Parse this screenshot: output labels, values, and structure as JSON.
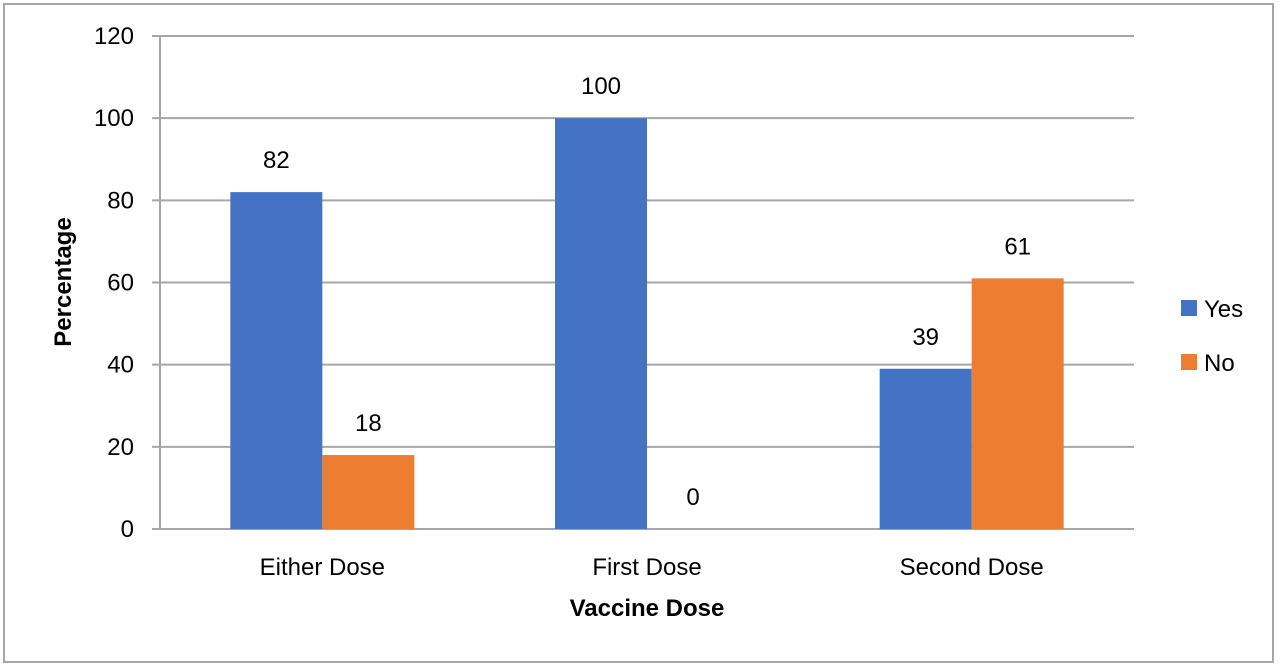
{
  "chart_data": {
    "type": "bar",
    "title": "",
    "xlabel": "Vaccine Dose",
    "ylabel": "Percentage",
    "categories": [
      "Either Dose",
      "First Dose",
      "Second Dose"
    ],
    "series": [
      {
        "name": "Yes",
        "color": "#4472c4",
        "values": [
          82,
          100,
          39
        ]
      },
      {
        "name": "No",
        "color": "#ed7d31",
        "values": [
          18,
          0,
          61
        ]
      }
    ],
    "ylim": [
      0,
      120
    ],
    "yticks": [
      0,
      20,
      40,
      60,
      80,
      100,
      120
    ],
    "grid": true,
    "legend": "right"
  }
}
